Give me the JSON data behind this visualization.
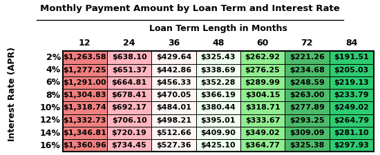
{
  "title": "Monthly Payment Amount by Loan Term and Interest Rate",
  "col_header_label": "Loan Term Length in Months",
  "row_header_label": "Interest Rate (APR)",
  "col_headers": [
    "12",
    "24",
    "36",
    "48",
    "60",
    "72",
    "84"
  ],
  "row_headers": [
    "2%",
    "4%",
    "6%",
    "8%",
    "10%",
    "12%",
    "14%",
    "16%"
  ],
  "values": [
    [
      "$1,263.58",
      "$638.10",
      "$429.64",
      "$325.43",
      "$262.92",
      "$221.26",
      "$191.51"
    ],
    [
      "$1,277.25",
      "$651.37",
      "$442.86",
      "$338.69",
      "$276.25",
      "$234.68",
      "$205.03"
    ],
    [
      "$1,291.00",
      "$664.81",
      "$456.33",
      "$352.28",
      "$289.99",
      "$248.59",
      "$219.13"
    ],
    [
      "$1,304.83",
      "$678.41",
      "$470.05",
      "$366.19",
      "$304.15",
      "$263.00",
      "$233.79"
    ],
    [
      "$1,318.74",
      "$692.17",
      "$484.01",
      "$380.44",
      "$318.71",
      "$277.89",
      "$249.02"
    ],
    [
      "$1,332.73",
      "$706.10",
      "$498.21",
      "$395.01",
      "$333.67",
      "$293.25",
      "$264.79"
    ],
    [
      "$1,346.81",
      "$720.19",
      "$512.66",
      "$409.90",
      "$349.02",
      "$309.09",
      "$281.10"
    ],
    [
      "$1,360.96",
      "$734.45",
      "$527.36",
      "$425.10",
      "$364.77",
      "$325.38",
      "$297.93"
    ]
  ],
  "cell_colors": [
    [
      "#F08080",
      "#FFB6C1",
      "#FFF5F5",
      "#F0FFF0",
      "#90EE90",
      "#4CBB6A",
      "#2ECC71"
    ],
    [
      "#F08080",
      "#FFB6C1",
      "#FFF5F5",
      "#F0FFF0",
      "#90EE90",
      "#4CBB6A",
      "#2ECC71"
    ],
    [
      "#F08080",
      "#FFB6C1",
      "#FFF5F5",
      "#F0FFF0",
      "#90EE90",
      "#4CBB6A",
      "#2ECC71"
    ],
    [
      "#F08080",
      "#FFB6C1",
      "#FFF5F5",
      "#F0FFF0",
      "#90EE90",
      "#4CBB6A",
      "#2ECC71"
    ],
    [
      "#F08080",
      "#FFB6C1",
      "#FFF5F5",
      "#F0FFF0",
      "#90EE90",
      "#4CBB6A",
      "#2ECC71"
    ],
    [
      "#F08080",
      "#FFB6C1",
      "#FFF5F5",
      "#F0FFF0",
      "#90EE90",
      "#4CBB6A",
      "#2ECC71"
    ],
    [
      "#F08080",
      "#FFB6C1",
      "#FFF5F5",
      "#F0FFF0",
      "#90EE90",
      "#4CBB6A",
      "#2ECC71"
    ],
    [
      "#F08080",
      "#FFB6C1",
      "#FFF5F5",
      "#F0FFF0",
      "#90EE90",
      "#4CBB6A",
      "#2ECC71"
    ]
  ],
  "border_color": "#000000",
  "text_color": "#000000",
  "title_fontsize": 9.5,
  "cell_fontsize": 8.0,
  "header_fontsize": 9.0
}
